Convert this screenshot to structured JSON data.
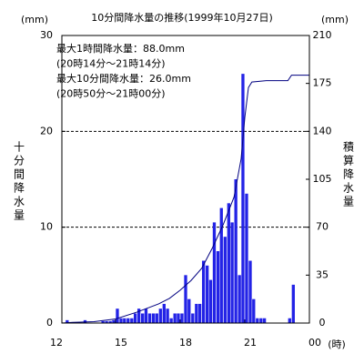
{
  "chart_data": {
    "type": "bar",
    "title": "10分間降水量の推移(1999年10月27日)",
    "y_unit": "(mm)",
    "y2_unit": "(mm)",
    "x_unit": "(時)",
    "y_label": "十分間降水量",
    "y2_label": "積算降水量",
    "annotations": [
      "最大1時間降水量：88.0mm",
      "(20時14分～21時14分)",
      "最大10分間降水量：26.0mm",
      "(20時50分～21時00分)"
    ],
    "xlim": [
      12,
      24
    ],
    "xticks": [
      12,
      15,
      18,
      21,
      {
        "value": 24,
        "label": "00"
      }
    ],
    "ylim": [
      0,
      30
    ],
    "yticks": [
      0,
      10,
      20,
      30
    ],
    "y2lim": [
      0,
      210
    ],
    "y2ticks": [
      0,
      35,
      70,
      105,
      140,
      175,
      210
    ],
    "grid": true,
    "series": [
      {
        "type": "bar",
        "color": "#2323e6",
        "x": [
          12.67,
          13.5,
          14.33,
          14.5,
          14.67,
          14.83,
          15.0,
          15.17,
          15.33,
          15.5,
          15.67,
          15.83,
          16.0,
          16.17,
          16.33,
          16.5,
          16.67,
          16.83,
          17.0,
          17.17,
          17.33,
          17.5,
          17.67,
          17.83,
          18.0,
          18.17,
          18.33,
          18.5,
          18.67,
          18.83,
          19.0,
          19.17,
          19.33,
          19.5,
          19.67,
          19.83,
          20.0,
          20.17,
          20.33,
          20.5,
          20.67,
          20.83,
          21.0,
          21.17,
          21.33,
          21.5,
          21.67,
          21.83,
          23.0,
          23.17
        ],
        "values": [
          0.3,
          0.3,
          0.2,
          0.2,
          0.2,
          0.3,
          1.5,
          0.5,
          0.5,
          0.5,
          0.5,
          1.0,
          1.5,
          1.0,
          1.5,
          1.0,
          1.0,
          1.0,
          1.5,
          2.0,
          1.5,
          0.5,
          1.0,
          1.0,
          1.0,
          5.0,
          2.5,
          1.0,
          2.0,
          2.0,
          6.5,
          6.0,
          4.5,
          10.5,
          7.5,
          12.0,
          9.0,
          12.5,
          10.5,
          15.0,
          5.0,
          26.0,
          13.5,
          6.5,
          2.5,
          0.5,
          0.5,
          0.5,
          0.5,
          4.0
        ]
      },
      {
        "type": "line",
        "axis": "y2",
        "color": "#000080",
        "x": [
          12.5,
          13,
          14,
          15,
          16,
          17,
          17.5,
          18,
          18.5,
          19,
          19.5,
          20,
          20.5,
          20.83,
          21,
          21.17,
          21.33,
          22,
          23,
          23.17,
          24
        ],
        "values": [
          0,
          0.5,
          1,
          3,
          8,
          14,
          18,
          24,
          31,
          40,
          55,
          72,
          92,
          120,
          150,
          172,
          176,
          177,
          177,
          181,
          181
        ]
      }
    ]
  }
}
